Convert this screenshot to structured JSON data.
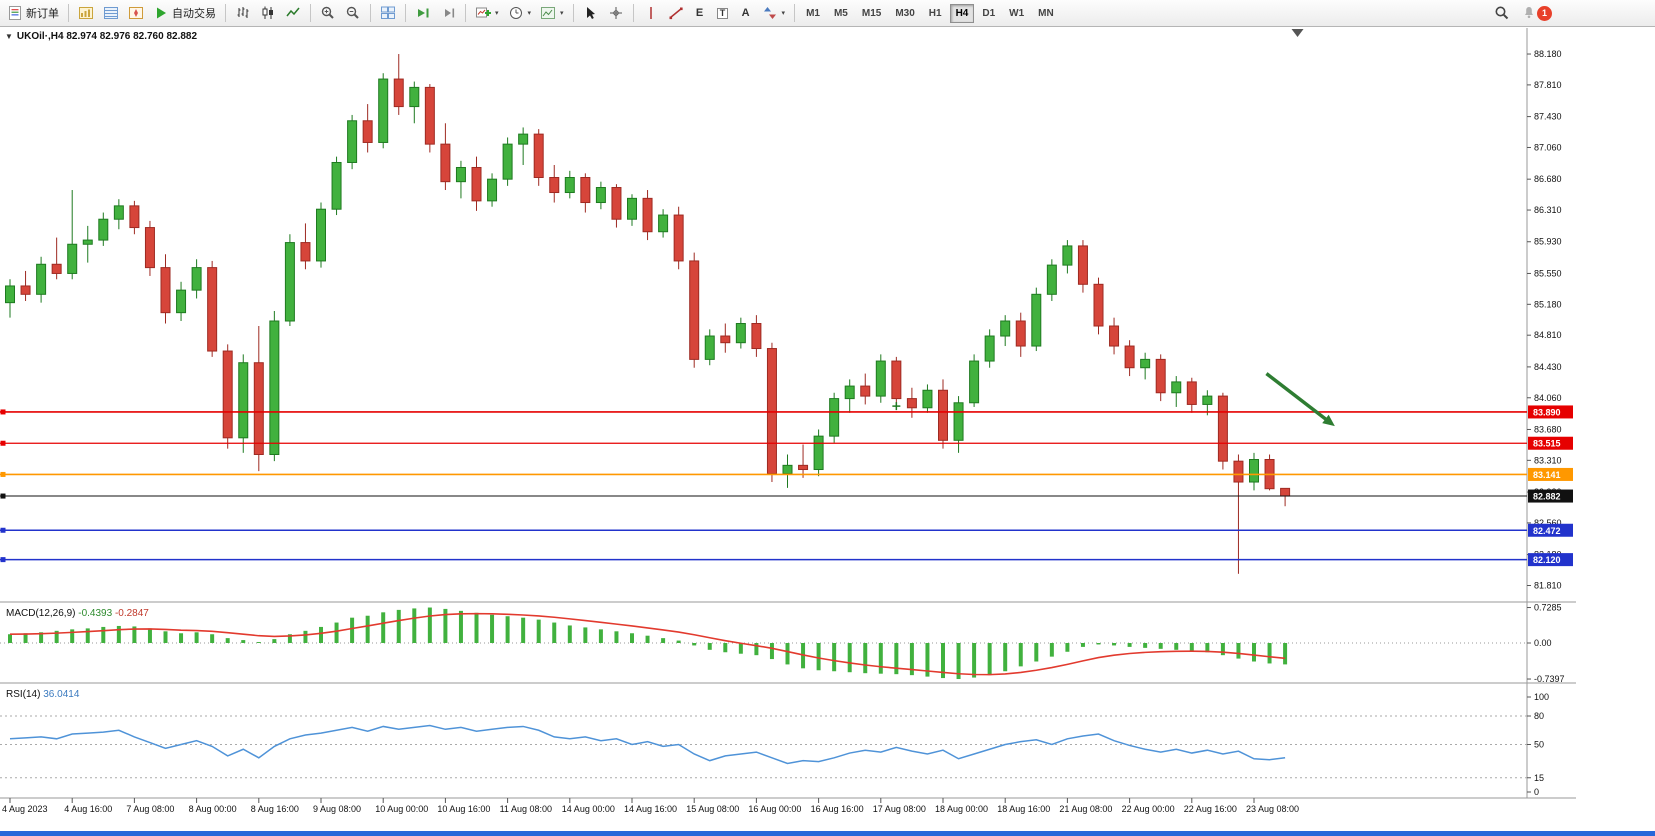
{
  "toolbar": {
    "new_order": "新订单",
    "auto_trading": "自动交易",
    "timeframes": [
      "M1",
      "M5",
      "M15",
      "M30",
      "H1",
      "H4",
      "D1",
      "W1",
      "MN"
    ],
    "active_timeframe": "H4",
    "notification_badge": "1",
    "glyphs": {
      "text_tool": "A",
      "label_tool": "T",
      "elliott_tool": "E"
    }
  },
  "chart": {
    "title": "UKOil·,H4 82.974 82.976 82.760 82.882",
    "collapse_glyph": "▼"
  },
  "colors": {
    "bull": "#41b13e",
    "bull_border": "#1e7a20",
    "bear": "#d6453a",
    "bear_border": "#9e2a22",
    "macd_bar": "#41b13e",
    "macd_signal": "#e23a2e",
    "rsi_line": "#4f93d8",
    "red_line": "#e60000",
    "orange_line": "#ff9800",
    "blue_line": "#2233cc",
    "price_line": "#111111",
    "arrow": "#2e7d32"
  },
  "chart_data": {
    "type": "candlestick",
    "symbol_period": "UKOil,H4",
    "ohlc_current": {
      "open": "82.974",
      "high": "82.976",
      "low": "82.760",
      "close": "82.882"
    },
    "price_axis_labels": [
      "88.180",
      "87.810",
      "87.430",
      "87.060",
      "86.680",
      "86.310",
      "85.930",
      "85.550",
      "85.180",
      "84.810",
      "84.430",
      "84.060",
      "83.680",
      "83.310",
      "82.930",
      "82.560",
      "82.180",
      "81.810"
    ],
    "ylim": [
      81.66,
      88.42
    ],
    "candles": [
      [
        85.2,
        85.48,
        85.02,
        85.4
      ],
      [
        85.4,
        85.58,
        85.22,
        85.3
      ],
      [
        85.3,
        85.75,
        85.2,
        85.66
      ],
      [
        85.66,
        85.98,
        85.48,
        85.55
      ],
      [
        85.55,
        86.55,
        85.48,
        85.9
      ],
      [
        85.9,
        86.12,
        85.68,
        85.95
      ],
      [
        85.95,
        86.28,
        85.88,
        86.2
      ],
      [
        86.2,
        86.44,
        86.08,
        86.36
      ],
      [
        86.36,
        86.42,
        86.02,
        86.1
      ],
      [
        86.1,
        86.18,
        85.52,
        85.62
      ],
      [
        85.62,
        85.78,
        84.95,
        85.08
      ],
      [
        85.08,
        85.45,
        84.98,
        85.35
      ],
      [
        85.35,
        85.72,
        85.25,
        85.62
      ],
      [
        85.62,
        85.7,
        84.55,
        84.62
      ],
      [
        84.62,
        84.7,
        83.45,
        83.58
      ],
      [
        83.58,
        84.58,
        83.4,
        84.48
      ],
      [
        84.48,
        84.92,
        83.18,
        83.38
      ],
      [
        83.38,
        85.1,
        83.3,
        84.98
      ],
      [
        84.98,
        86.02,
        84.92,
        85.92
      ],
      [
        85.92,
        86.15,
        85.6,
        85.7
      ],
      [
        85.7,
        86.4,
        85.62,
        86.32
      ],
      [
        86.32,
        86.95,
        86.25,
        86.88
      ],
      [
        86.88,
        87.45,
        86.8,
        87.38
      ],
      [
        87.38,
        87.58,
        87.0,
        87.12
      ],
      [
        87.12,
        87.95,
        87.05,
        87.88
      ],
      [
        87.88,
        88.18,
        87.45,
        87.55
      ],
      [
        87.55,
        87.85,
        87.35,
        87.78
      ],
      [
        87.78,
        87.82,
        87.0,
        87.1
      ],
      [
        87.1,
        87.35,
        86.55,
        86.65
      ],
      [
        86.65,
        86.9,
        86.45,
        86.82
      ],
      [
        86.82,
        86.95,
        86.3,
        86.42
      ],
      [
        86.42,
        86.75,
        86.35,
        86.68
      ],
      [
        86.68,
        87.18,
        86.6,
        87.1
      ],
      [
        87.1,
        87.3,
        86.85,
        87.22
      ],
      [
        87.22,
        87.28,
        86.6,
        86.7
      ],
      [
        86.7,
        86.85,
        86.4,
        86.52
      ],
      [
        86.52,
        86.78,
        86.45,
        86.7
      ],
      [
        86.7,
        86.75,
        86.28,
        86.4
      ],
      [
        86.4,
        86.65,
        86.32,
        86.58
      ],
      [
        86.58,
        86.62,
        86.1,
        86.2
      ],
      [
        86.2,
        86.5,
        86.12,
        86.45
      ],
      [
        86.45,
        86.55,
        85.95,
        86.05
      ],
      [
        86.05,
        86.32,
        85.98,
        86.25
      ],
      [
        86.25,
        86.35,
        85.6,
        85.7
      ],
      [
        85.7,
        85.8,
        84.42,
        84.52
      ],
      [
        84.52,
        84.88,
        84.45,
        84.8
      ],
      [
        84.8,
        84.95,
        84.6,
        84.72
      ],
      [
        84.72,
        85.02,
        84.65,
        84.95
      ],
      [
        84.95,
        85.05,
        84.55,
        84.65
      ],
      [
        84.65,
        84.72,
        83.05,
        83.15
      ],
      [
        83.15,
        83.38,
        82.98,
        83.25
      ],
      [
        83.25,
        83.5,
        83.1,
        83.2
      ],
      [
        83.2,
        83.68,
        83.12,
        83.6
      ],
      [
        83.6,
        84.12,
        83.52,
        84.05
      ],
      [
        84.05,
        84.28,
        83.88,
        84.2
      ],
      [
        84.2,
        84.35,
        83.98,
        84.08
      ],
      [
        84.08,
        84.58,
        84.0,
        84.5
      ],
      [
        84.5,
        84.55,
        83.95,
        84.05
      ],
      [
        84.05,
        84.18,
        83.82,
        83.94
      ],
      [
        83.94,
        84.22,
        83.88,
        84.15
      ],
      [
        84.15,
        84.28,
        83.45,
        83.55
      ],
      [
        83.55,
        84.08,
        83.4,
        84.0
      ],
      [
        84.0,
        84.58,
        83.95,
        84.5
      ],
      [
        84.5,
        84.88,
        84.42,
        84.8
      ],
      [
        84.8,
        85.05,
        84.68,
        84.98
      ],
      [
        84.98,
        85.08,
        84.55,
        84.68
      ],
      [
        84.68,
        85.38,
        84.62,
        85.3
      ],
      [
        85.3,
        85.72,
        85.22,
        85.65
      ],
      [
        85.65,
        85.95,
        85.55,
        85.88
      ],
      [
        85.88,
        85.95,
        85.32,
        85.42
      ],
      [
        85.42,
        85.5,
        84.82,
        84.92
      ],
      [
        84.92,
        85.02,
        84.58,
        84.68
      ],
      [
        84.68,
        84.75,
        84.32,
        84.42
      ],
      [
        84.42,
        84.6,
        84.28,
        84.52
      ],
      [
        84.52,
        84.58,
        84.02,
        84.12
      ],
      [
        84.12,
        84.32,
        83.95,
        84.25
      ],
      [
        84.25,
        84.3,
        83.88,
        83.98
      ],
      [
        83.98,
        84.15,
        83.85,
        84.08
      ],
      [
        84.08,
        84.12,
        83.2,
        83.3
      ],
      [
        83.3,
        83.38,
        81.95,
        83.05
      ],
      [
        83.05,
        83.4,
        82.95,
        83.32
      ],
      [
        83.32,
        83.38,
        82.95,
        82.97
      ],
      [
        82.974,
        82.976,
        82.76,
        82.882
      ]
    ],
    "time_labels": [
      "4 Aug 2023",
      "4 Aug 16:00",
      "7 Aug 08:00",
      "8 Aug 00:00",
      "8 Aug 16:00",
      "9 Aug 08:00",
      "10 Aug 00:00",
      "10 Aug 16:00",
      "11 Aug 08:00",
      "14 Aug 00:00",
      "14 Aug 16:00",
      "15 Aug 08:00",
      "16 Aug 00:00",
      "16 Aug 16:00",
      "17 Aug 08:00",
      "18 Aug 00:00",
      "18 Aug 16:00",
      "21 Aug 08:00",
      "22 Aug 00:00",
      "22 Aug 16:00",
      "23 Aug 08:00"
    ],
    "label_step": 4,
    "hlines": [
      {
        "price": 83.89,
        "label": "83.890",
        "color": "red_line",
        "width": 1.6
      },
      {
        "price": 83.515,
        "label": "83.515",
        "color": "red_line",
        "width": 1.3
      },
      {
        "price": 83.141,
        "label": "83.141",
        "color": "orange_line",
        "width": 1.6
      },
      {
        "price": 82.882,
        "label": "82.882",
        "color": "price_line",
        "width": 1.0
      },
      {
        "price": 82.472,
        "label": "82.472",
        "color": "blue_line",
        "width": 1.5
      },
      {
        "price": 82.12,
        "label": "82.120",
        "color": "blue_line",
        "width": 1.5
      }
    ],
    "annotations": {
      "arrow": {
        "from_bar": 80.8,
        "from_price": 84.35,
        "to_bar": 85.2,
        "to_price": 83.72
      },
      "shift_marker_bar": 82.8,
      "order_tick": {
        "bar": 57,
        "price": 83.96
      }
    },
    "macd": {
      "name": "MACD(12,26,9)",
      "value": "-0.4393",
      "signal_value": "-0.2847",
      "axis_labels": [
        "0.7285",
        "0.00",
        "-0.7397"
      ],
      "signal_ema_period": 9,
      "values": [
        0.18,
        0.2,
        0.22,
        0.25,
        0.28,
        0.3,
        0.33,
        0.35,
        0.34,
        0.3,
        0.24,
        0.2,
        0.22,
        0.18,
        0.1,
        0.06,
        0.02,
        0.08,
        0.18,
        0.25,
        0.33,
        0.42,
        0.52,
        0.56,
        0.63,
        0.68,
        0.71,
        0.7285,
        0.7,
        0.66,
        0.62,
        0.58,
        0.55,
        0.52,
        0.48,
        0.42,
        0.36,
        0.32,
        0.28,
        0.24,
        0.2,
        0.15,
        0.1,
        0.05,
        -0.05,
        -0.14,
        -0.19,
        -0.22,
        -0.25,
        -0.33,
        -0.44,
        -0.52,
        -0.56,
        -0.58,
        -0.6,
        -0.62,
        -0.63,
        -0.64,
        -0.66,
        -0.69,
        -0.72,
        -0.7397,
        -0.71,
        -0.66,
        -0.58,
        -0.48,
        -0.38,
        -0.28,
        -0.18,
        -0.08,
        -0.03,
        -0.05,
        -0.08,
        -0.1,
        -0.12,
        -0.14,
        -0.16,
        -0.19,
        -0.25,
        -0.32,
        -0.38,
        -0.42,
        -0.4393
      ]
    },
    "rsi": {
      "name": "RSI(14)",
      "value": "36.0414",
      "axis_labels": [
        "100",
        "80",
        "50",
        "15",
        "0"
      ],
      "level_lines": [
        80,
        50,
        15
      ],
      "values": [
        56,
        57,
        58,
        56,
        61,
        62,
        63,
        65,
        58,
        52,
        46,
        50,
        54,
        48,
        38,
        45,
        36,
        48,
        56,
        60,
        62,
        65,
        68,
        64,
        69,
        66,
        68,
        70,
        66,
        68,
        64,
        66,
        68,
        69,
        65,
        58,
        56,
        58,
        54,
        56,
        50,
        53,
        48,
        50,
        40,
        33,
        38,
        40,
        42,
        36,
        30,
        33,
        32,
        36,
        41,
        44,
        42,
        47,
        43,
        40,
        44,
        35,
        40,
        45,
        50,
        53,
        55,
        50,
        56,
        59,
        61,
        54,
        49,
        45,
        42,
        45,
        41,
        44,
        40,
        43,
        35,
        34,
        36.0414
      ]
    }
  }
}
